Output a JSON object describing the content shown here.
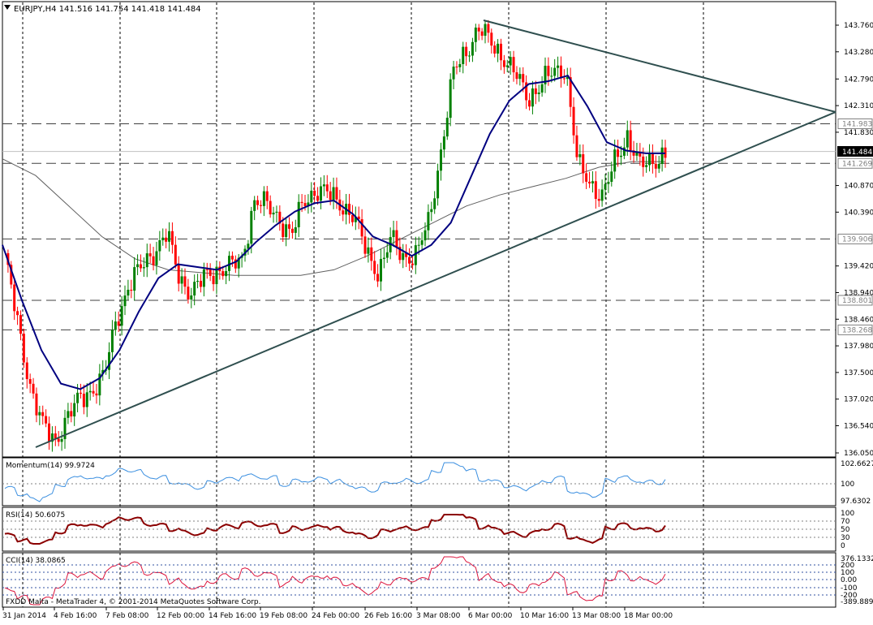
{
  "main_chart": {
    "symbol_header": "EURJPY,H4  141.516 141.754 141.418 141.484",
    "price_axis_labels": [
      "143.760",
      "143.280",
      "142.790",
      "142.310",
      "141.830",
      "140.870",
      "140.390",
      "139.420",
      "138.940",
      "138.460",
      "137.980",
      "137.500",
      "137.020",
      "136.540",
      "136.050"
    ],
    "current_price_tag": "141.484",
    "hline_tags": [
      "141.983",
      "141.269",
      "139.906",
      "138.801",
      "138.268"
    ],
    "collapse_icon": "triangle-down-icon"
  },
  "indicators": {
    "momentum": {
      "label": "Momentum(14) 99.9724",
      "scale": [
        "102.6627",
        "100",
        "97.6302"
      ]
    },
    "rsi": {
      "label": "RSI(14) 50.6075",
      "scale": [
        "100",
        "70",
        "50",
        "30",
        "0"
      ]
    },
    "cci": {
      "label": "CCI(14) 38.0865",
      "scale": [
        "376.1332",
        "200",
        "100",
        "0.00",
        "-100",
        "-200",
        "-389.8891"
      ]
    }
  },
  "time_axis_labels": [
    "31 Jan 2014",
    "4 Feb 16:00",
    "7 Feb 08:00",
    "12 Feb 00:00",
    "14 Feb 16:00",
    "19 Feb 08:00",
    "24 Feb 00:00",
    "26 Feb 16:00",
    "3 Mar 08:00",
    "6 Mar 00:00",
    "10 Mar 16:00",
    "13 Mar 08:00",
    "18 Mar 00:00"
  ],
  "watermark": "FXDD Malta - MetaTrader 4, © 2001-2014 MetaQuotes Software Corp.",
  "colors": {
    "bull": "#008000",
    "bear": "#ff0000",
    "ma_fast": "#000080",
    "ma_slow": "#606060",
    "momentum": "#3b8fe0",
    "rsi": "#8b0000",
    "cci": "#dc143c",
    "trendline": "#2f4f4f"
  },
  "chart_data": {
    "type": "line",
    "series": [
      {
        "name": "EURJPY,H4",
        "y": [
          139.6,
          138.4,
          137.3,
          136.55,
          136.25,
          136.7,
          137.0,
          137.2,
          137.45,
          138.5,
          139.1,
          139.4,
          139.7,
          140.0,
          139.2,
          138.95,
          139.2,
          139.35,
          139.4,
          139.5,
          140.6,
          140.5,
          140.3,
          139.95,
          140.6,
          140.8,
          140.7,
          140.55,
          140.3,
          139.7,
          139.3,
          139.9,
          139.6,
          139.6,
          140.2,
          141.5,
          142.9,
          143.3,
          143.7,
          143.45,
          143.2,
          142.85,
          142.45,
          142.7,
          142.9,
          143.0,
          141.2,
          140.9,
          140.7,
          141.3,
          141.8,
          141.2,
          141.3,
          141.484
        ]
      },
      {
        "name": "MA fast",
        "y": [
          139.8,
          138.8,
          137.9,
          137.3,
          137.2,
          137.4,
          137.9,
          138.6,
          139.2,
          139.45,
          139.4,
          139.35,
          139.5,
          139.85,
          140.15,
          140.4,
          140.55,
          140.6,
          140.35,
          139.95,
          139.8,
          139.6,
          139.8,
          140.2,
          141.0,
          141.8,
          142.4,
          142.7,
          142.75,
          142.85,
          142.3,
          141.65,
          141.5,
          141.45,
          141.45
        ]
      },
      {
        "name": "MA slow",
        "y": [
          141.35,
          141.05,
          140.5,
          139.95,
          139.55,
          139.35,
          139.3,
          139.25,
          139.25,
          139.25,
          139.35,
          139.6,
          139.9,
          140.2,
          140.5,
          140.7,
          140.85,
          141.0,
          141.2,
          141.3,
          141.3
        ]
      }
    ],
    "ylim": [
      136.05,
      143.76
    ],
    "grid": true
  }
}
